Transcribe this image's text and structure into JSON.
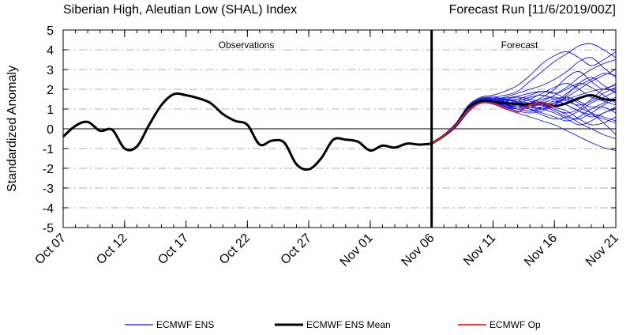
{
  "title_left": "Siberian High, Aleutian Low (SHAL) Index",
  "title_right": "Forecast Run [11/6/2019/00Z]",
  "chart_data": {
    "type": "line",
    "ylabel": "Standardized Anomaly",
    "ylim": [
      -5,
      5
    ],
    "yticks": [
      5,
      4,
      3,
      2,
      1,
      0,
      -1,
      -2,
      -3,
      -4,
      -5
    ],
    "x_start": "2019-10-07",
    "x_end": "2019-11-21",
    "xticks": [
      {
        "date": "2019-10-07",
        "label": "Oct 07"
      },
      {
        "date": "2019-10-12",
        "label": "Oct 12"
      },
      {
        "date": "2019-10-17",
        "label": "Oct 17"
      },
      {
        "date": "2019-10-22",
        "label": "Oct 22"
      },
      {
        "date": "2019-10-27",
        "label": "Oct 27"
      },
      {
        "date": "2019-11-01",
        "label": "Nov 01"
      },
      {
        "date": "2019-11-06",
        "label": "Nov 06"
      },
      {
        "date": "2019-11-11",
        "label": "Nov 11"
      },
      {
        "date": "2019-11-16",
        "label": "Nov 16"
      },
      {
        "date": "2019-11-21",
        "label": "Nov 21"
      }
    ],
    "forecast_start": "2019-11-06",
    "annotations": {
      "observations": "Observations",
      "forecast": "Forecast"
    },
    "grid_dashed_y": true,
    "zero_line": true,
    "observations": {
      "dates": [
        "2019-10-07",
        "2019-10-08",
        "2019-10-09",
        "2019-10-10",
        "2019-10-11",
        "2019-10-12",
        "2019-10-13",
        "2019-10-14",
        "2019-10-15",
        "2019-10-16",
        "2019-10-17",
        "2019-10-18",
        "2019-10-19",
        "2019-10-20",
        "2019-10-21",
        "2019-10-22",
        "2019-10-23",
        "2019-10-24",
        "2019-10-25",
        "2019-10-26",
        "2019-10-27",
        "2019-10-28",
        "2019-10-29",
        "2019-10-30",
        "2019-10-31",
        "2019-11-01",
        "2019-11-02",
        "2019-11-03",
        "2019-11-04",
        "2019-11-05",
        "2019-11-06"
      ],
      "values": [
        -0.4,
        0.15,
        0.35,
        -0.1,
        -0.05,
        -1.0,
        -0.9,
        0.2,
        1.2,
        1.75,
        1.7,
        1.55,
        1.3,
        0.75,
        0.4,
        0.2,
        -0.8,
        -0.6,
        -0.7,
        -1.8,
        -2.05,
        -1.5,
        -0.55,
        -0.55,
        -0.65,
        -1.1,
        -0.85,
        -0.95,
        -0.75,
        -0.8,
        -0.75
      ]
    },
    "forecast_dates": [
      "2019-11-06",
      "2019-11-07",
      "2019-11-08",
      "2019-11-09",
      "2019-11-10",
      "2019-11-11",
      "2019-11-12",
      "2019-11-13",
      "2019-11-14",
      "2019-11-15",
      "2019-11-16",
      "2019-11-17",
      "2019-11-18",
      "2019-11-19",
      "2019-11-20",
      "2019-11-21"
    ],
    "series": [
      {
        "name": "ECMWF ENS Mean",
        "color": "#000000",
        "values": [
          -0.75,
          -0.35,
          0.2,
          1.05,
          1.4,
          1.35,
          1.3,
          1.25,
          1.25,
          1.3,
          1.15,
          1.3,
          1.55,
          1.7,
          1.5,
          1.45
        ]
      },
      {
        "name": "ECMWF Op",
        "color": "#ee1c25",
        "values": [
          -0.75,
          -0.35,
          0.2,
          0.95,
          1.3,
          1.3,
          1.05,
          0.85,
          1.2,
          1.3,
          1.1
        ]
      },
      {
        "name": "ECMWF ENS",
        "color": "#1515ee",
        "members": [
          [
            -0.75,
            -0.3,
            0.25,
            1.15,
            1.55,
            1.6,
            1.7,
            1.9,
            2.4,
            2.9,
            3.4,
            3.8,
            4.2,
            4.3,
            4.0,
            3.6
          ],
          [
            -0.75,
            -0.3,
            0.3,
            1.2,
            1.6,
            1.7,
            1.9,
            2.2,
            2.7,
            3.3,
            3.7,
            3.9,
            3.6,
            3.2,
            3.5,
            3.9
          ],
          [
            -0.75,
            -0.35,
            0.2,
            1.1,
            1.5,
            1.5,
            1.6,
            1.8,
            2.0,
            2.2,
            2.5,
            2.9,
            3.4,
            3.6,
            3.1,
            2.6
          ],
          [
            -0.75,
            -0.35,
            0.2,
            1.0,
            1.45,
            1.45,
            1.4,
            1.5,
            1.7,
            1.9,
            1.8,
            2.1,
            2.6,
            3.0,
            3.3,
            3.5
          ],
          [
            -0.75,
            -0.35,
            0.15,
            1.05,
            1.4,
            1.35,
            1.2,
            1.1,
            1.3,
            1.6,
            2.0,
            2.6,
            2.9,
            2.4,
            2.0,
            2.3
          ],
          [
            -0.75,
            -0.4,
            0.15,
            0.95,
            1.35,
            1.3,
            1.1,
            0.9,
            0.8,
            0.9,
            1.2,
            1.5,
            1.3,
            0.8,
            0.3,
            -0.3
          ],
          [
            -0.75,
            -0.4,
            0.1,
            0.9,
            1.3,
            1.25,
            1.0,
            0.8,
            0.6,
            0.4,
            0.2,
            -0.1,
            -0.4,
            -0.7,
            -0.95,
            -1.1
          ],
          [
            -0.75,
            -0.35,
            0.2,
            1.0,
            1.4,
            1.4,
            1.3,
            1.2,
            1.0,
            0.7,
            0.5,
            0.6,
            0.9,
            1.3,
            1.6,
            1.9
          ],
          [
            -0.75,
            -0.35,
            0.25,
            1.1,
            1.5,
            1.5,
            1.5,
            1.4,
            1.3,
            1.2,
            1.0,
            0.7,
            0.3,
            0.0,
            -0.3,
            -0.5
          ],
          [
            -0.75,
            -0.35,
            0.2,
            1.0,
            1.45,
            1.45,
            1.35,
            1.2,
            1.1,
            1.1,
            1.3,
            1.6,
            2.0,
            2.4,
            2.7,
            3.0
          ],
          [
            -0.75,
            -0.4,
            0.1,
            0.85,
            1.3,
            1.3,
            1.15,
            1.0,
            0.9,
            1.1,
            1.4,
            1.2,
            0.9,
            0.6,
            0.8,
            1.1
          ],
          [
            -0.75,
            -0.35,
            0.2,
            1.05,
            1.5,
            1.55,
            1.5,
            1.6,
            1.5,
            1.3,
            1.0,
            0.8,
            1.0,
            1.5,
            2.0,
            2.2
          ],
          [
            -0.75,
            -0.35,
            0.2,
            1.0,
            1.4,
            1.4,
            1.3,
            1.4,
            1.6,
            1.7,
            1.5,
            1.2,
            0.9,
            0.7,
            0.5,
            0.3
          ],
          [
            -0.75,
            -0.3,
            0.3,
            1.15,
            1.55,
            1.6,
            1.5,
            1.3,
            1.1,
            1.0,
            1.2,
            1.7,
            2.3,
            2.6,
            2.2,
            1.8
          ],
          [
            -0.75,
            -0.4,
            0.15,
            0.9,
            1.3,
            1.25,
            1.1,
            1.0,
            1.1,
            1.3,
            1.5,
            1.6,
            1.4,
            1.1,
            1.3,
            1.6
          ],
          [
            -0.75,
            -0.35,
            0.2,
            1.0,
            1.4,
            1.4,
            1.4,
            1.5,
            1.4,
            1.2,
            0.9,
            0.6,
            0.5,
            0.8,
            1.2,
            1.5
          ],
          [
            -0.75,
            -0.35,
            0.25,
            1.1,
            1.5,
            1.5,
            1.4,
            1.2,
            1.2,
            1.4,
            1.7,
            2.0,
            2.3,
            2.1,
            1.7,
            1.3
          ],
          [
            -0.75,
            -0.4,
            0.1,
            0.9,
            1.35,
            1.35,
            1.2,
            1.1,
            1.2,
            1.3,
            1.1,
            0.9,
            0.5,
            0.2,
            0.3,
            0.6
          ],
          [
            -0.75,
            -0.35,
            0.2,
            1.05,
            1.45,
            1.45,
            1.3,
            1.3,
            1.5,
            1.8,
            2.1,
            2.3,
            2.0,
            1.6,
            1.4,
            1.2
          ],
          [
            -0.75,
            -0.35,
            0.2,
            1.0,
            1.4,
            1.35,
            1.2,
            1.0,
            0.9,
            1.0,
            1.3,
            1.8,
            2.2,
            2.5,
            2.8,
            2.7
          ],
          [
            -0.75,
            -0.35,
            0.25,
            1.1,
            1.5,
            1.5,
            1.45,
            1.35,
            1.2,
            1.0,
            0.8,
            0.5,
            0.2,
            0.4,
            0.8,
            1.0
          ],
          [
            -0.75,
            -0.4,
            0.15,
            0.95,
            1.35,
            1.3,
            1.2,
            1.2,
            1.3,
            1.5,
            1.6,
            1.4,
            1.2,
            1.4,
            1.8,
            2.1
          ],
          [
            -0.75,
            -0.35,
            0.2,
            1.0,
            1.45,
            1.4,
            1.25,
            1.1,
            1.0,
            0.8,
            0.6,
            0.4,
            0.6,
            1.0,
            1.1,
            0.8
          ],
          [
            -0.75,
            -0.35,
            0.2,
            1.05,
            1.45,
            1.5,
            1.55,
            1.65,
            1.8,
            1.9,
            1.8,
            1.5,
            1.1,
            0.8,
            0.6,
            0.4
          ],
          [
            -0.75,
            -0.35,
            0.2,
            1.0,
            1.4,
            1.4,
            1.3,
            1.25,
            1.2,
            1.2,
            1.3,
            1.5,
            1.7,
            1.9,
            2.0,
            1.9
          ]
        ]
      }
    ],
    "legend": [
      {
        "label": "ECMWF ENS",
        "color": "#1515ee"
      },
      {
        "label": "ECMWF ENS Mean",
        "color": "#000000"
      },
      {
        "label": "ECMWF Op",
        "color": "#ee1c25"
      }
    ]
  }
}
